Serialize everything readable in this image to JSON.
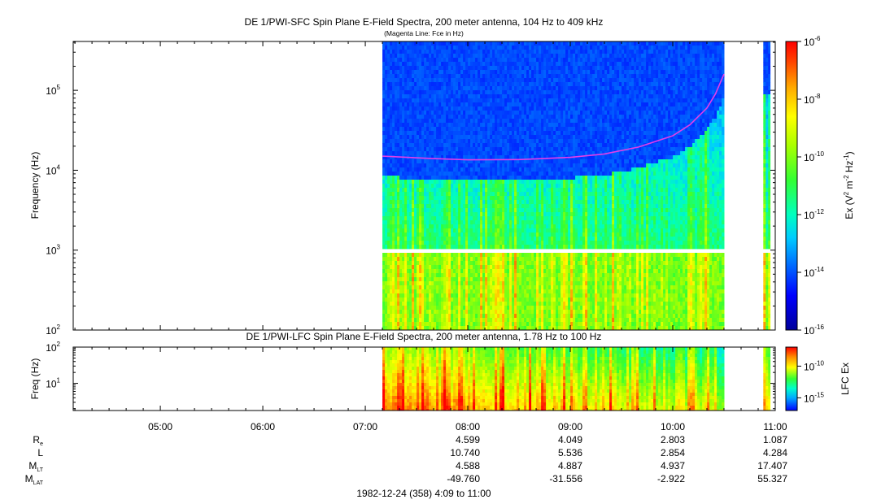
{
  "chart_data": [
    {
      "type": "heatmap",
      "title": "DE 1/PWI-SFC  Spin Plane E-Field Spectra, 200 meter antenna, 104 Hz to 409 kHz",
      "subtitle": "(Magenta Line: Fce in Hz)",
      "ylabel": "Frequency (Hz)",
      "yscale": "log",
      "ylim": [
        100,
        409000
      ],
      "yticks": [
        {
          "v": 100,
          "b": "10",
          "e": "2"
        },
        {
          "v": 1000,
          "b": "10",
          "e": "3"
        },
        {
          "v": 10000,
          "b": "10",
          "e": "4"
        },
        {
          "v": 100000,
          "b": "10",
          "e": "5"
        }
      ],
      "xlim": [
        "04:09",
        "11:00"
      ],
      "colorbar": {
        "label_prefix": "Ex (V",
        "label_sup1": "2",
        "label_mid": " m",
        "label_sup2": "-2",
        "label_mid2": " Hz",
        "label_sup3": "-1",
        "label_suffix": ")",
        "scale": "log",
        "range": [
          1e-16,
          1e-06
        ],
        "ticks": [
          {
            "v": -6,
            "b": "10",
            "e": "-6"
          },
          {
            "v": -8,
            "b": "10",
            "e": "-8"
          },
          {
            "v": -10,
            "b": "10",
            "e": "-10"
          },
          {
            "v": -12,
            "b": "10",
            "e": "-12"
          },
          {
            "v": -14,
            "b": "10",
            "e": "-14"
          },
          {
            "v": -16,
            "b": "10",
            "e": "-16"
          }
        ]
      },
      "data_intervals": [
        [
          "07:10",
          "10:30"
        ],
        [
          "10:53",
          "10:57"
        ]
      ],
      "data_gap_frequency_hz": [
        900,
        1050
      ],
      "series": [
        {
          "name": "Fce",
          "color": "#e23ee8",
          "x": [
            "07:10",
            "07:40",
            "08:00",
            "08:30",
            "09:00",
            "09:20",
            "09:40",
            "10:00",
            "10:10",
            "10:20",
            "10:25",
            "10:30"
          ],
          "y": [
            15000,
            14000,
            13500,
            13600,
            14500,
            16000,
            19500,
            27000,
            37000,
            60000,
            90000,
            160000
          ]
        }
      ]
    },
    {
      "type": "heatmap",
      "title": "DE 1/PWI-LFC  Spin Plane E-Field Spectra, 200 meter antenna, 1.78 Hz to 100 Hz",
      "ylabel": "Freq (Hz)",
      "yscale": "log",
      "ylim": [
        1.78,
        100
      ],
      "yticks": [
        {
          "v": 10,
          "b": "10",
          "e": "1"
        },
        {
          "v": 100,
          "b": "10",
          "e": "2"
        }
      ],
      "xlim": [
        "04:09",
        "11:00"
      ],
      "colorbar": {
        "label": "LFC Ex",
        "scale": "log",
        "range": [
          1e-17,
          1e-07
        ],
        "ticks": [
          {
            "v": -10,
            "b": "10",
            "e": "-10"
          },
          {
            "v": -15,
            "b": "10",
            "e": "-15"
          }
        ]
      },
      "data_intervals": [
        [
          "07:10",
          "10:30"
        ],
        [
          "10:53",
          "10:57"
        ]
      ]
    }
  ],
  "time_axis": {
    "ticks": [
      "05:00",
      "06:00",
      "07:00",
      "08:00",
      "09:00",
      "10:00",
      "11:00"
    ]
  },
  "ephemeris": {
    "rows": [
      {
        "label": "R",
        "sub": "e",
        "values": [
          "4.599",
          "4.049",
          "2.803",
          "1.087"
        ]
      },
      {
        "label": "L",
        "sub": "",
        "values": [
          "10.740",
          "5.536",
          "2.854",
          "4.284"
        ]
      },
      {
        "label": "M",
        "sub": "LT",
        "values": [
          "4.588",
          "4.887",
          "4.937",
          "17.407"
        ]
      },
      {
        "label": "M",
        "sub": "LAT",
        "values": [
          "-49.760",
          "-31.556",
          "-2.922",
          "55.327"
        ]
      }
    ]
  },
  "footer": "1982-12-24 (358) 4:09 to 11:00"
}
